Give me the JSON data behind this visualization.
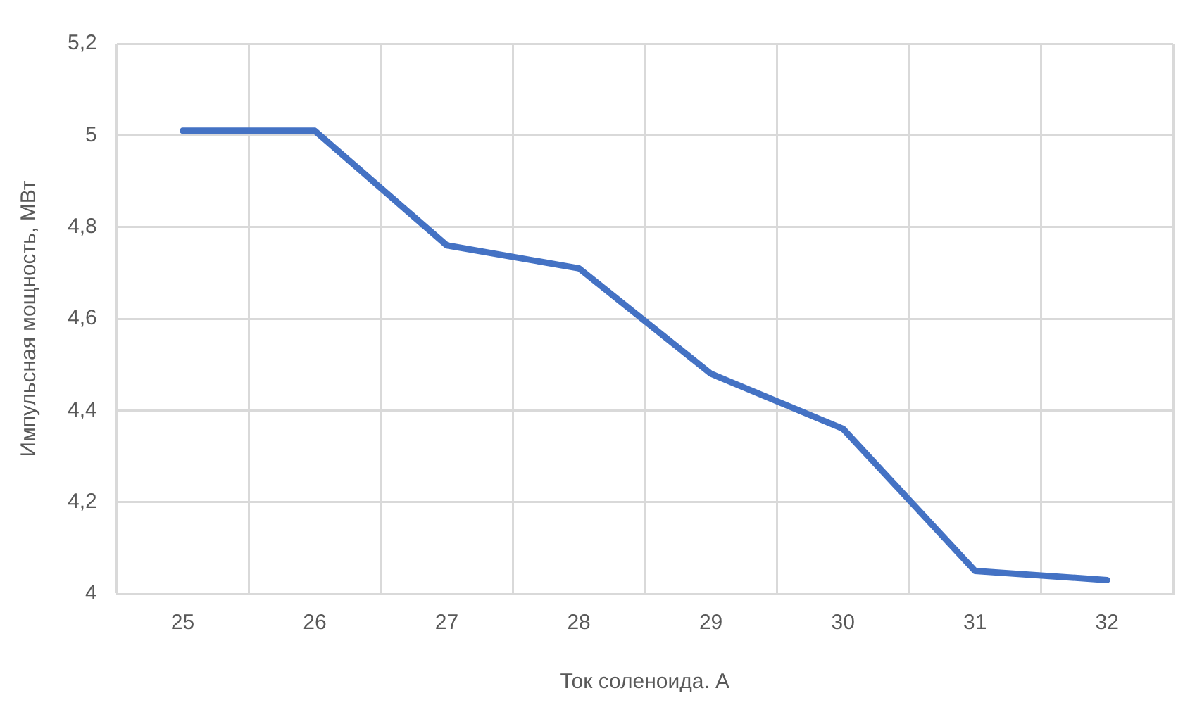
{
  "chart_data": {
    "type": "line",
    "xlabel": "Ток соленоида. А",
    "ylabel": "Импульсная мощность, МВт",
    "categories": [
      "25",
      "26",
      "27",
      "28",
      "29",
      "30",
      "31",
      "32"
    ],
    "series": [
      {
        "color": "#4472c4",
        "values": [
          5.01,
          5.01,
          4.76,
          4.71,
          4.48,
          4.36,
          4.05,
          4.03
        ]
      }
    ],
    "ylim": [
      4,
      5.2
    ],
    "yticks": [
      4,
      {
        "value": 4.2,
        "label": "4,2"
      },
      {
        "value": 4.4,
        "label": "4,4"
      },
      {
        "value": 4.6,
        "label": "4,6"
      },
      {
        "value": 4.8,
        "label": "4,8"
      },
      5,
      {
        "value": 5.2,
        "label": "5,2"
      }
    ],
    "grid": true,
    "legend": false,
    "marker": "none",
    "line_style": "solid"
  }
}
